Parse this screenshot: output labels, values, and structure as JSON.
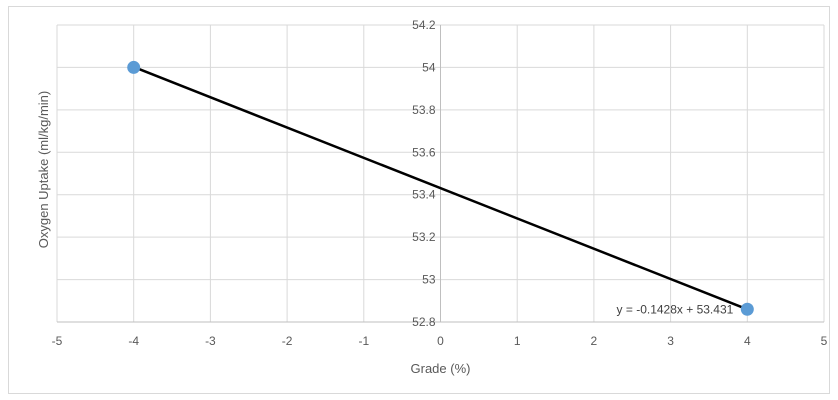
{
  "chart_data": {
    "type": "scatter",
    "title": "",
    "xlabel": "Grade (%)",
    "ylabel": "Oxygen Uptake (ml/kg/min)",
    "xlim": [
      -5,
      5
    ],
    "ylim": [
      52.8,
      54.2
    ],
    "x_ticks": [
      "-5",
      "-4",
      "-3",
      "-2",
      "-1",
      "0",
      "1",
      "2",
      "3",
      "4",
      "5"
    ],
    "y_ticks": [
      "52.8",
      "53",
      "53.2",
      "53.4",
      "53.6",
      "53.8",
      "54",
      "54.2"
    ],
    "grid": "both",
    "legend": "none",
    "series": [
      {
        "points": [
          {
            "x": -4,
            "y": 54.0
          },
          {
            "x": 4,
            "y": 52.86
          }
        ],
        "color": "#5b9bd5"
      }
    ],
    "trendline": {
      "type": "linear",
      "slope": -0.1428,
      "intercept": 53.431,
      "x_range": [
        -4,
        4
      ],
      "color": "#000000",
      "equation_label": "y = -0.1428x + 53.431"
    },
    "colors": {
      "grid": "#d9d9d9",
      "axis": "#bfbfbf",
      "text": "#595959"
    }
  }
}
